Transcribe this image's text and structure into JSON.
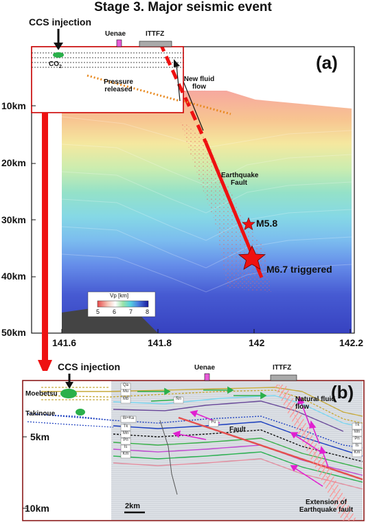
{
  "title": "Stage 3. Major seismic event",
  "panel_a": {
    "label": "(a)",
    "ccs_label": "CCS injection",
    "uenae": "Uenae",
    "ittfz": "ITTFZ",
    "co2": "CO",
    "co2_sub": "2",
    "pressure": "Pressure released",
    "new_fluid": "New fluid flow",
    "fault": "Earthquake Fault",
    "m58": "M5.8",
    "m67": "M6.7 triggered",
    "y_ticks": [
      "10km",
      "20km",
      "30km",
      "40km",
      "50km"
    ],
    "x_ticks": [
      "141.6",
      "141.8",
      "142",
      "142.2"
    ],
    "colorbar_title": "Vp [km]",
    "colorbar_ticks": [
      "5",
      "6",
      "7",
      "8"
    ]
  },
  "panel_b": {
    "label": "(b)",
    "ccs_label": "CCS injection",
    "uenae": "Uenae",
    "ittfz": "ITTFZ",
    "moebetsu": "Moebetsu",
    "takinoue": "Takinoue",
    "natural_flow": "Natural fluid flow",
    "fault": "Fault",
    "extension": "Extension of Earthquake fault",
    "y_ticks": [
      "5km",
      "10km"
    ],
    "scale": "2km",
    "left_units": [
      "Qa",
      "Mu",
      "Mb",
      "Bi+Ka",
      "Tk",
      "Mn",
      "Pn",
      "Is",
      "Km"
    ],
    "right_units": [
      "Tk",
      "Mn",
      "Pn",
      "Is",
      "Km"
    ],
    "mid_units": [
      "Nn",
      "Fu"
    ]
  }
}
